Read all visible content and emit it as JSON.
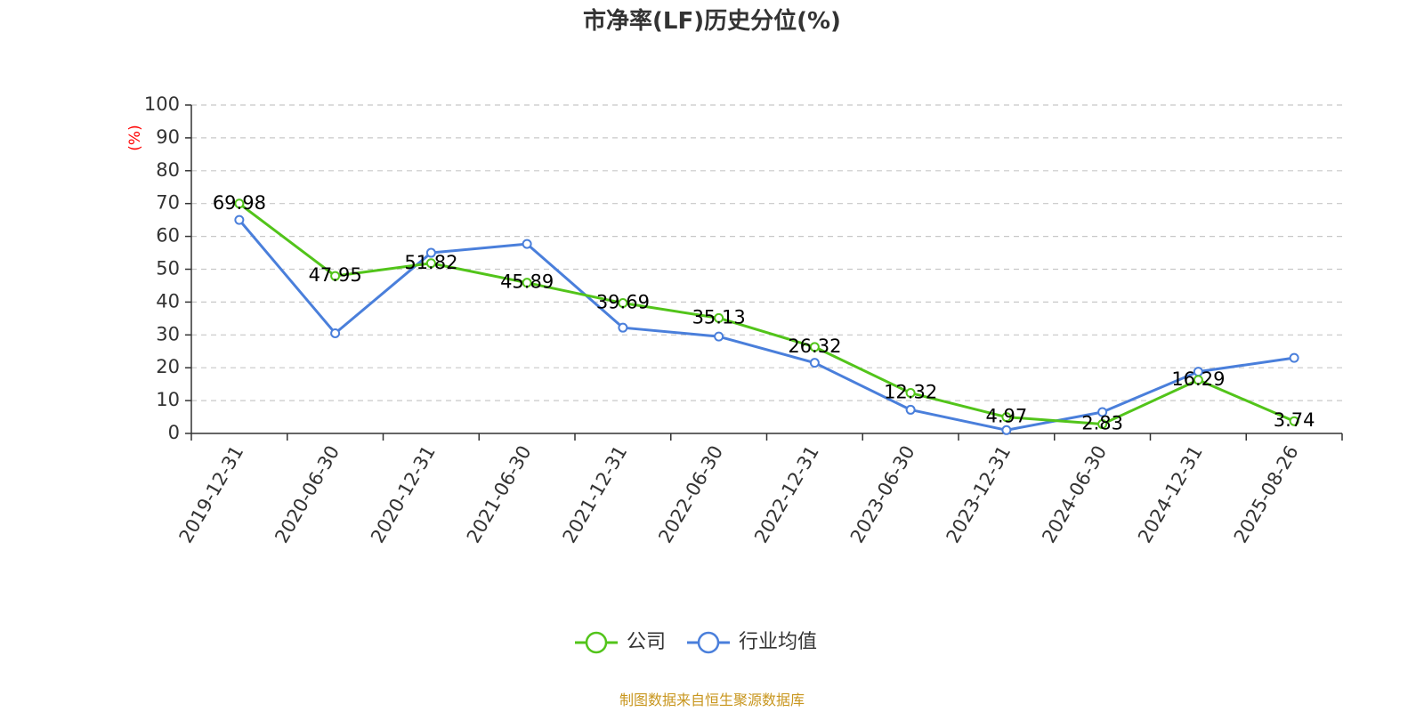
{
  "chart_data": {
    "type": "line",
    "title": "市净率(LF)历史分位(%)",
    "ylabel": "(%)",
    "xlabel": "",
    "ylim": [
      0,
      100
    ],
    "yticks": [
      0,
      10,
      20,
      30,
      40,
      50,
      60,
      70,
      80,
      90,
      100
    ],
    "grid": true,
    "legend_position": "bottom",
    "categories": [
      "2019-12-31",
      "2020-06-30",
      "2020-12-31",
      "2021-06-30",
      "2021-12-31",
      "2022-06-30",
      "2022-12-31",
      "2023-06-30",
      "2023-12-31",
      "2024-06-30",
      "2024-12-31",
      "2025-08-26"
    ],
    "series": [
      {
        "name": "公司",
        "color": "#52c41a",
        "show_labels": true,
        "values": [
          69.98,
          47.95,
          51.82,
          45.89,
          39.69,
          35.13,
          26.32,
          12.32,
          4.97,
          2.83,
          16.29,
          3.74
        ]
      },
      {
        "name": "行业均值",
        "color": "#4a7fdb",
        "show_labels": false,
        "values": [
          65.0,
          30.5,
          55.0,
          57.7,
          32.2,
          29.5,
          21.5,
          7.2,
          1.0,
          6.5,
          18.8,
          23.0
        ]
      }
    ]
  },
  "footer": {
    "source": "制图数据来自恒生聚源数据库"
  }
}
